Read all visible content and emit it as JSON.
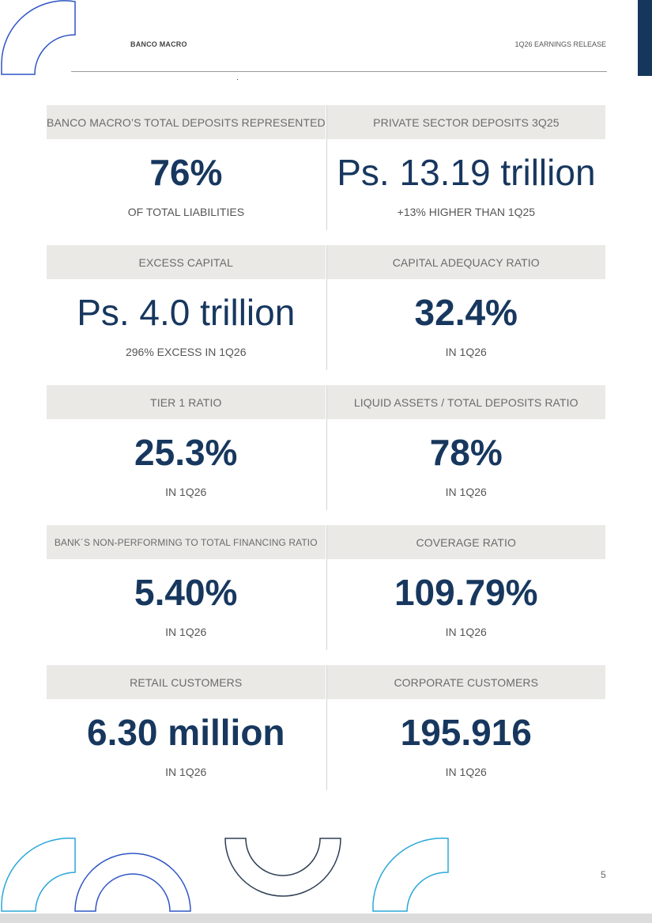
{
  "header": {
    "company": "BANCO MACRO",
    "release": "1Q26 EARNINGS RELEASE"
  },
  "colors": {
    "navy": "#17375e",
    "blue_outline": "#2f55c5",
    "teal_outline": "#2aa7d8",
    "dark_outline": "#2d3f55",
    "header_bg": "#eae9e6"
  },
  "metrics": [
    {
      "left": {
        "header": "BANCO MACRO’S TOTAL DEPOSITS REPRESENTED",
        "value": "76%",
        "sub": "OF TOTAL LIABILITIES"
      },
      "right": {
        "header": "PRIVATE SECTOR DEPOSITS 3Q25",
        "value": "Ps. 13.19 trillion",
        "sub": "+13% HIGHER THAN 1Q25"
      }
    },
    {
      "left": {
        "header": "EXCESS CAPITAL",
        "value": "Ps. 4.0 trillion",
        "sub": "296% EXCESS IN 1Q26"
      },
      "right": {
        "header": "CAPITAL ADEQUACY RATIO",
        "value": "32.4%",
        "sub": "IN 1Q26"
      }
    },
    {
      "left": {
        "header": "TIER 1 RATIO",
        "value": "25.3%",
        "sub": "IN 1Q26"
      },
      "right": {
        "header": "LIQUID ASSETS / TOTAL DEPOSITS RATIO",
        "value": "78%",
        "sub": "IN 1Q26"
      }
    },
    {
      "left": {
        "header": "BANK´S NON-PERFORMING TO TOTAL FINANCING RATIO",
        "value": "5.40%",
        "sub": "IN 1Q26"
      },
      "right": {
        "header": "COVERAGE RATIO",
        "value": "109.79%",
        "sub": "IN 1Q26"
      }
    },
    {
      "left": {
        "header": "RETAIL CUSTOMERS",
        "value": "6.30 million",
        "sub": "IN 1Q26"
      },
      "right": {
        "header": "CORPORATE CUSTOMERS",
        "value": "195.916",
        "sub": "IN 1Q26"
      }
    }
  ],
  "page_number": "5",
  "icons": [
    "arc-logo-icon"
  ]
}
